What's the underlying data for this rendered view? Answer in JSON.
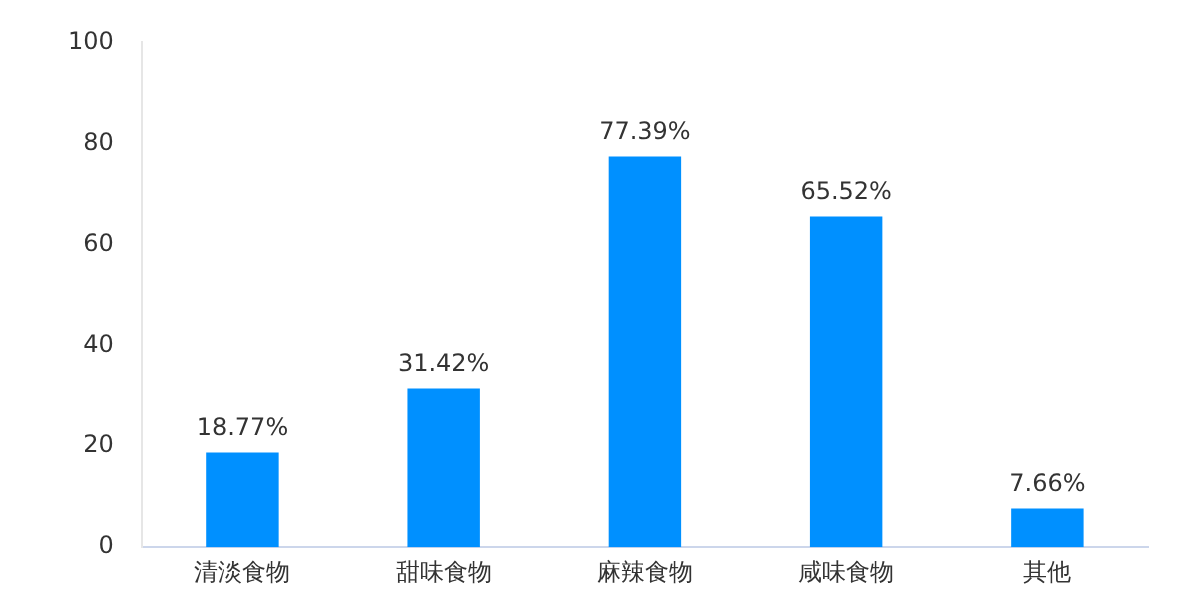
{
  "chart_data": {
    "type": "bar",
    "categories": [
      "清淡食物",
      "甜味食物",
      "麻辣食物",
      "咸味食物",
      "其他"
    ],
    "values": [
      18.77,
      31.42,
      77.39,
      65.52,
      7.66
    ],
    "value_labels": [
      "18.77%",
      "31.42%",
      "77.39%",
      "65.52%",
      "7.66%"
    ],
    "color": "#0090ff",
    "ylim": [
      0,
      100
    ],
    "yticks": [
      0,
      20,
      40,
      60,
      80,
      100
    ],
    "grid": false,
    "legend": false
  }
}
